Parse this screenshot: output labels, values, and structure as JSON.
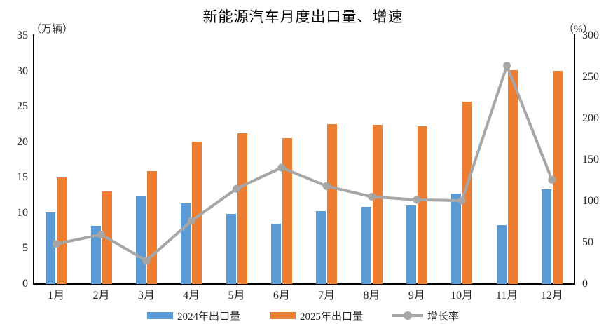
{
  "title": "新能源汽车月度出口量、增速",
  "legend": {
    "items": [
      {
        "label": "2024年出口量",
        "color": "#5B9BD5",
        "kind": "bar"
      },
      {
        "label": "2025年出口量",
        "color": "#ED7D31",
        "kind": "bar"
      },
      {
        "label": "增长率",
        "color": "#A6A6A6",
        "kind": "line"
      }
    ]
  },
  "chart_data": {
    "type": "combo-bar-line",
    "title": "新能源汽车月度出口量、增速",
    "categories": [
      "1月",
      "2月",
      "3月",
      "4月",
      "5月",
      "6月",
      "7月",
      "8月",
      "9月",
      "10月",
      "11月",
      "12月"
    ],
    "series": [
      {
        "name": "2024年出口量",
        "kind": "bar",
        "axis": "left",
        "color": "#5B9BD5",
        "values": [
          10.1,
          8.2,
          12.4,
          11.4,
          9.9,
          8.5,
          10.3,
          10.9,
          11.1,
          12.8,
          8.3,
          13.3
        ]
      },
      {
        "name": "2025年出口量",
        "kind": "bar",
        "axis": "left",
        "color": "#ED7D31",
        "values": [
          15.0,
          13.1,
          15.9,
          20.1,
          21.3,
          20.6,
          22.5,
          22.4,
          22.2,
          25.7,
          30.2,
          30.1
        ]
      },
      {
        "name": "增长率",
        "kind": "line",
        "axis": "right",
        "color": "#A6A6A6",
        "marker": "circle",
        "values": [
          48.5,
          59.8,
          28.2,
          76.3,
          115.2,
          140.7,
          118.4,
          105.5,
          101.8,
          100.8,
          263.9,
          126.0
        ]
      }
    ],
    "left_axis": {
      "label": "（万辆）",
      "ylim": [
        0,
        35
      ],
      "ticks": [
        0,
        5,
        10,
        15,
        20,
        25,
        30,
        35
      ]
    },
    "right_axis": {
      "label": "（%）",
      "ylim": [
        0,
        300
      ],
      "ticks": [
        0,
        50,
        100,
        150,
        200,
        250,
        300
      ]
    },
    "grid": false,
    "legend_position": "bottom"
  }
}
